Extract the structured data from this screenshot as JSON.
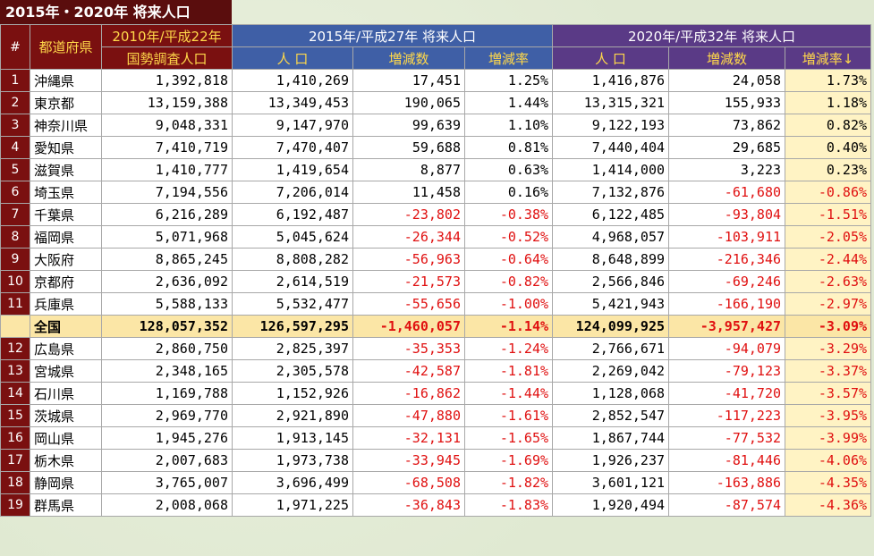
{
  "title": "2015年・2020年 将来人口",
  "headers": {
    "num": "#",
    "pref": "都道府県",
    "g2010": "2010年/平成22年",
    "g2015": "2015年/平成27年 将来人口",
    "g2020": "2020年/平成32年 将来人口",
    "census": "国勢調査人口",
    "pop": "人 口",
    "diff": "増減数",
    "rate": "増減率",
    "rate_sorted": "増減率↓"
  },
  "rows": [
    {
      "rank": "1",
      "pref": "沖縄県",
      "p2010": "1,392,818",
      "p2015": "1,410,269",
      "d2015": "17,451",
      "r2015": "1.25%",
      "p2020": "1,416,876",
      "d2020": "24,058",
      "r2020": "1.73%"
    },
    {
      "rank": "2",
      "pref": "東京都",
      "p2010": "13,159,388",
      "p2015": "13,349,453",
      "d2015": "190,065",
      "r2015": "1.44%",
      "p2020": "13,315,321",
      "d2020": "155,933",
      "r2020": "1.18%"
    },
    {
      "rank": "3",
      "pref": "神奈川県",
      "p2010": "9,048,331",
      "p2015": "9,147,970",
      "d2015": "99,639",
      "r2015": "1.10%",
      "p2020": "9,122,193",
      "d2020": "73,862",
      "r2020": "0.82%"
    },
    {
      "rank": "4",
      "pref": "愛知県",
      "p2010": "7,410,719",
      "p2015": "7,470,407",
      "d2015": "59,688",
      "r2015": "0.81%",
      "p2020": "7,440,404",
      "d2020": "29,685",
      "r2020": "0.40%"
    },
    {
      "rank": "5",
      "pref": "滋賀県",
      "p2010": "1,410,777",
      "p2015": "1,419,654",
      "d2015": "8,877",
      "r2015": "0.63%",
      "p2020": "1,414,000",
      "d2020": "3,223",
      "r2020": "0.23%"
    },
    {
      "rank": "6",
      "pref": "埼玉県",
      "p2010": "7,194,556",
      "p2015": "7,206,014",
      "d2015": "11,458",
      "r2015": "0.16%",
      "p2020": "7,132,876",
      "d2020": "-61,680",
      "r2020": "-0.86%"
    },
    {
      "rank": "7",
      "pref": "千葉県",
      "p2010": "6,216,289",
      "p2015": "6,192,487",
      "d2015": "-23,802",
      "r2015": "-0.38%",
      "p2020": "6,122,485",
      "d2020": "-93,804",
      "r2020": "-1.51%"
    },
    {
      "rank": "8",
      "pref": "福岡県",
      "p2010": "5,071,968",
      "p2015": "5,045,624",
      "d2015": "-26,344",
      "r2015": "-0.52%",
      "p2020": "4,968,057",
      "d2020": "-103,911",
      "r2020": "-2.05%"
    },
    {
      "rank": "9",
      "pref": "大阪府",
      "p2010": "8,865,245",
      "p2015": "8,808,282",
      "d2015": "-56,963",
      "r2015": "-0.64%",
      "p2020": "8,648,899",
      "d2020": "-216,346",
      "r2020": "-2.44%"
    },
    {
      "rank": "10",
      "pref": "京都府",
      "p2010": "2,636,092",
      "p2015": "2,614,519",
      "d2015": "-21,573",
      "r2015": "-0.82%",
      "p2020": "2,566,846",
      "d2020": "-69,246",
      "r2020": "-2.63%"
    },
    {
      "rank": "11",
      "pref": "兵庫県",
      "p2010": "5,588,133",
      "p2015": "5,532,477",
      "d2015": "-55,656",
      "r2015": "-1.00%",
      "p2020": "5,421,943",
      "d2020": "-166,190",
      "r2020": "-2.97%"
    },
    {
      "rank": "",
      "pref": "全国",
      "p2010": "128,057,352",
      "p2015": "126,597,295",
      "d2015": "-1,460,057",
      "r2015": "-1.14%",
      "p2020": "124,099,925",
      "d2020": "-3,957,427",
      "r2020": "-3.09%",
      "total": true
    },
    {
      "rank": "12",
      "pref": "広島県",
      "p2010": "2,860,750",
      "p2015": "2,825,397",
      "d2015": "-35,353",
      "r2015": "-1.24%",
      "p2020": "2,766,671",
      "d2020": "-94,079",
      "r2020": "-3.29%"
    },
    {
      "rank": "13",
      "pref": "宮城県",
      "p2010": "2,348,165",
      "p2015": "2,305,578",
      "d2015": "-42,587",
      "r2015": "-1.81%",
      "p2020": "2,269,042",
      "d2020": "-79,123",
      "r2020": "-3.37%"
    },
    {
      "rank": "14",
      "pref": "石川県",
      "p2010": "1,169,788",
      "p2015": "1,152,926",
      "d2015": "-16,862",
      "r2015": "-1.44%",
      "p2020": "1,128,068",
      "d2020": "-41,720",
      "r2020": "-3.57%"
    },
    {
      "rank": "15",
      "pref": "茨城県",
      "p2010": "2,969,770",
      "p2015": "2,921,890",
      "d2015": "-47,880",
      "r2015": "-1.61%",
      "p2020": "2,852,547",
      "d2020": "-117,223",
      "r2020": "-3.95%"
    },
    {
      "rank": "16",
      "pref": "岡山県",
      "p2010": "1,945,276",
      "p2015": "1,913,145",
      "d2015": "-32,131",
      "r2015": "-1.65%",
      "p2020": "1,867,744",
      "d2020": "-77,532",
      "r2020": "-3.99%"
    },
    {
      "rank": "17",
      "pref": "栃木県",
      "p2010": "2,007,683",
      "p2015": "1,973,738",
      "d2015": "-33,945",
      "r2015": "-1.69%",
      "p2020": "1,926,237",
      "d2020": "-81,446",
      "r2020": "-4.06%"
    },
    {
      "rank": "18",
      "pref": "静岡県",
      "p2010": "3,765,007",
      "p2015": "3,696,499",
      "d2015": "-68,508",
      "r2015": "-1.82%",
      "p2020": "3,601,121",
      "d2020": "-163,886",
      "r2020": "-4.35%"
    },
    {
      "rank": "19",
      "pref": "群馬県",
      "p2010": "2,008,068",
      "p2015": "1,971,225",
      "d2015": "-36,843",
      "r2015": "-1.83%",
      "p2020": "1,920,494",
      "d2020": "-87,574",
      "r2020": "-4.36%"
    }
  ]
}
